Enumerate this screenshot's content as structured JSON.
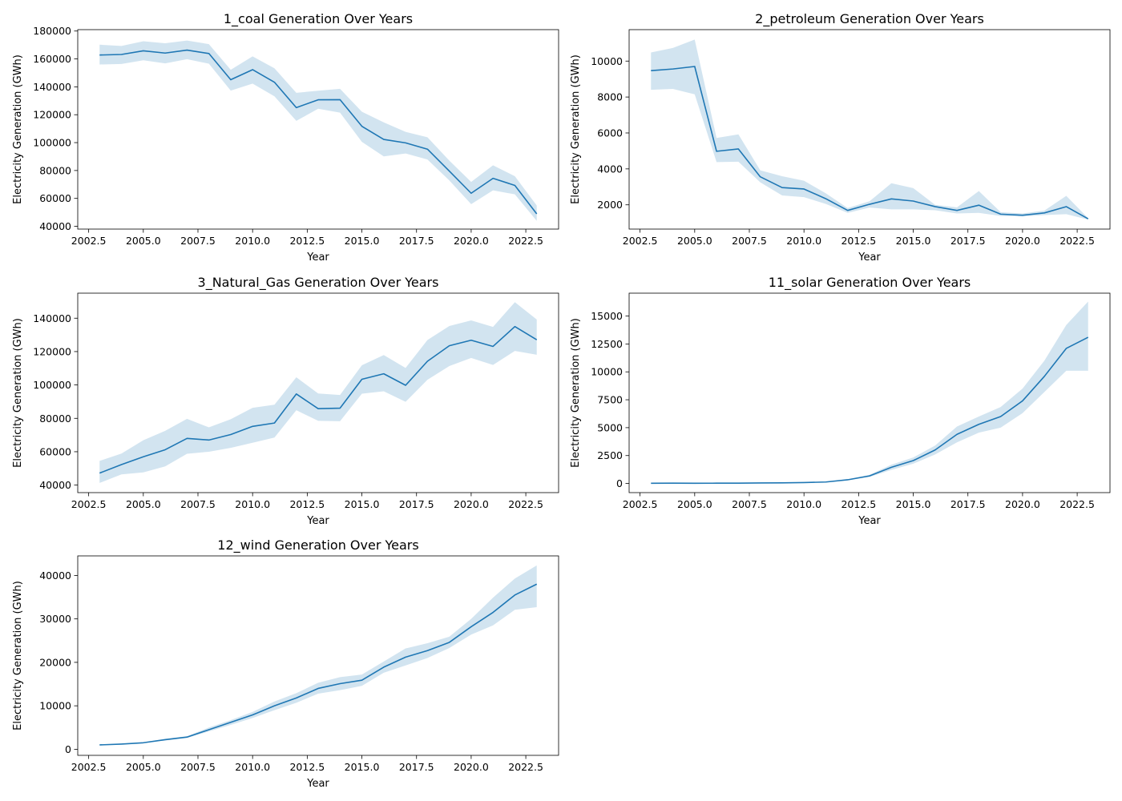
{
  "charts": [
    {
      "type": "line",
      "title": "1_coal Generation Over Years",
      "xlabel": "Year",
      "ylabel": "Electricity Generation (GWh)",
      "xlim": [
        2002.0,
        2024.0
      ],
      "ylim": [
        38000,
        181000
      ],
      "xticks": [
        2002.5,
        2005.0,
        2007.5,
        2010.0,
        2012.5,
        2015.0,
        2017.5,
        2020.0,
        2022.5
      ],
      "xtick_labels": [
        "2002.5",
        "2005.0",
        "2007.5",
        "2010.0",
        "2012.5",
        "2015.0",
        "2017.5",
        "2020.0",
        "2022.5"
      ],
      "yticks": [
        40000,
        60000,
        80000,
        100000,
        120000,
        140000,
        160000,
        180000
      ],
      "ytick_labels": [
        "40000",
        "60000",
        "80000",
        "100000",
        "120000",
        "140000",
        "160000",
        "180000"
      ],
      "x": [
        2003,
        2004,
        2005,
        2006,
        2007,
        2008,
        2009,
        2010,
        2011,
        2012,
        2013,
        2014,
        2015,
        2016,
        2017,
        2018,
        2019,
        2020,
        2021,
        2022,
        2023
      ],
      "mean": [
        162800,
        163200,
        165800,
        164200,
        166300,
        163900,
        145100,
        152300,
        143300,
        125100,
        130700,
        130800,
        111700,
        102300,
        99800,
        95300,
        79600,
        63700,
        74400,
        69300,
        48900
      ],
      "lower": [
        156000,
        156400,
        159000,
        156800,
        159800,
        156600,
        137300,
        142300,
        133200,
        115600,
        124300,
        121500,
        100500,
        90100,
        92200,
        87900,
        72900,
        55900,
        65800,
        62900,
        43900
      ],
      "upper": [
        170200,
        169300,
        172700,
        171200,
        173200,
        170600,
        152200,
        161800,
        153300,
        135700,
        137200,
        138600,
        122100,
        114500,
        107700,
        103800,
        87100,
        71800,
        83700,
        75900,
        54900
      ]
    },
    {
      "type": "line",
      "title": "2_petroleum Generation Over Years",
      "xlabel": "Year",
      "ylabel": "Electricity Generation (GWh)",
      "xlim": [
        2002.0,
        2024.0
      ],
      "ylim": [
        650,
        11750
      ],
      "xticks": [
        2002.5,
        2005.0,
        2007.5,
        2010.0,
        2012.5,
        2015.0,
        2017.5,
        2020.0,
        2022.5
      ],
      "xtick_labels": [
        "2002.5",
        "2005.0",
        "2007.5",
        "2010.0",
        "2012.5",
        "2015.0",
        "2017.5",
        "2020.0",
        "2022.5"
      ],
      "yticks": [
        2000,
        4000,
        6000,
        8000,
        10000
      ],
      "ytick_labels": [
        "2000",
        "4000",
        "6000",
        "8000",
        "10000"
      ],
      "x": [
        2003,
        2004,
        2005,
        2006,
        2007,
        2008,
        2009,
        2010,
        2011,
        2012,
        2013,
        2014,
        2015,
        2016,
        2017,
        2018,
        2019,
        2020,
        2021,
        2022,
        2023
      ],
      "mean": [
        9470,
        9560,
        9700,
        4980,
        5110,
        3560,
        2960,
        2880,
        2340,
        1690,
        2030,
        2330,
        2210,
        1900,
        1690,
        1980,
        1480,
        1420,
        1550,
        1900,
        1220
      ],
      "lower": [
        8400,
        8450,
        8150,
        4380,
        4400,
        3250,
        2520,
        2430,
        2050,
        1550,
        1850,
        1750,
        1750,
        1700,
        1520,
        1550,
        1380,
        1350,
        1430,
        1480,
        1180
      ],
      "upper": [
        10480,
        10730,
        11200,
        5720,
        5920,
        3920,
        3590,
        3340,
        2640,
        1820,
        2200,
        3200,
        2930,
        2000,
        1860,
        2770,
        1590,
        1520,
        1680,
        2500,
        1260
      ]
    },
    {
      "type": "line",
      "title": "3_Natural_Gas Generation Over Years",
      "xlabel": "Year",
      "ylabel": "Electricity Generation (GWh)",
      "xlim": [
        2002.0,
        2024.0
      ],
      "ylim": [
        35500,
        155000
      ],
      "xticks": [
        2002.5,
        2005.0,
        2007.5,
        2010.0,
        2012.5,
        2015.0,
        2017.5,
        2020.0,
        2022.5
      ],
      "xtick_labels": [
        "2002.5",
        "2005.0",
        "2007.5",
        "2010.0",
        "2012.5",
        "2015.0",
        "2017.5",
        "2020.0",
        "2022.5"
      ],
      "yticks": [
        40000,
        60000,
        80000,
        100000,
        120000,
        140000
      ],
      "ytick_labels": [
        "40000",
        "60000",
        "80000",
        "100000",
        "120000",
        "140000"
      ],
      "x": [
        2003,
        2004,
        2005,
        2006,
        2007,
        2008,
        2009,
        2010,
        2011,
        2012,
        2013,
        2014,
        2015,
        2016,
        2017,
        2018,
        2019,
        2020,
        2021,
        2022,
        2023
      ],
      "mean": [
        47200,
        52300,
        57000,
        61200,
        68000,
        67000,
        70300,
        75200,
        77200,
        94600,
        85800,
        86100,
        103400,
        106700,
        99800,
        114200,
        123500,
        126800,
        123100,
        135000,
        127100
      ],
      "lower": [
        41300,
        46400,
        47600,
        51200,
        58800,
        60000,
        62300,
        65400,
        68500,
        84900,
        78500,
        78300,
        94800,
        96200,
        89900,
        103100,
        111300,
        116200,
        112000,
        120400,
        118100
      ],
      "upper": [
        54500,
        58900,
        66900,
        72500,
        79700,
        74600,
        79500,
        86300,
        88200,
        104600,
        94900,
        94000,
        111800,
        117900,
        110200,
        126900,
        135300,
        138700,
        134800,
        149600,
        139200
      ]
    },
    {
      "type": "line",
      "title": "11_solar Generation Over Years",
      "xlabel": "Year",
      "ylabel": "Electricity Generation (GWh)",
      "xlim": [
        2002.0,
        2024.0
      ],
      "ylim": [
        -820,
        17050
      ],
      "xticks": [
        2002.5,
        2005.0,
        2007.5,
        2010.0,
        2012.5,
        2015.0,
        2017.5,
        2020.0,
        2022.5
      ],
      "xtick_labels": [
        "2002.5",
        "2005.0",
        "2007.5",
        "2010.0",
        "2012.5",
        "2015.0",
        "2017.5",
        "2020.0",
        "2022.5"
      ],
      "yticks": [
        0,
        2500,
        5000,
        7500,
        10000,
        12500,
        15000
      ],
      "ytick_labels": [
        "0",
        "2500",
        "5000",
        "7500",
        "10000",
        "12500",
        "15000"
      ],
      "x": [
        2003,
        2004,
        2005,
        2006,
        2007,
        2008,
        2009,
        2010,
        2011,
        2012,
        2013,
        2014,
        2015,
        2016,
        2017,
        2018,
        2019,
        2020,
        2021,
        2022,
        2023
      ],
      "mean": [
        20,
        25,
        20,
        25,
        30,
        45,
        55,
        80,
        130,
        330,
        680,
        1450,
        2050,
        3000,
        4400,
        5300,
        6000,
        7400,
        9600,
        12100,
        13100
      ],
      "lower": [
        10,
        15,
        10,
        15,
        20,
        30,
        40,
        60,
        100,
        280,
        580,
        1220,
        1770,
        2600,
        3680,
        4550,
        5000,
        6300,
        8200,
        10100,
        10100
      ],
      "upper": [
        30,
        35,
        30,
        35,
        40,
        60,
        70,
        100,
        160,
        380,
        780,
        1680,
        2330,
        3400,
        5100,
        6000,
        6850,
        8500,
        11000,
        14200,
        16300
      ]
    },
    {
      "type": "line",
      "title": "12_wind Generation Over Years",
      "xlabel": "Year",
      "ylabel": "Electricity Generation (GWh)",
      "xlim": [
        2002.0,
        2024.0
      ],
      "ylim": [
        -1400,
        44500
      ],
      "xticks": [
        2002.5,
        2005.0,
        2007.5,
        2010.0,
        2012.5,
        2015.0,
        2017.5,
        2020.0,
        2022.5
      ],
      "xtick_labels": [
        "2002.5",
        "2005.0",
        "2007.5",
        "2010.0",
        "2012.5",
        "2015.0",
        "2017.5",
        "2020.0",
        "2022.5"
      ],
      "yticks": [
        0,
        10000,
        20000,
        30000,
        40000
      ],
      "ytick_labels": [
        "0",
        "10000",
        "20000",
        "30000",
        "40000"
      ],
      "x": [
        2003,
        2004,
        2005,
        2006,
        2007,
        2008,
        2009,
        2010,
        2011,
        2012,
        2013,
        2014,
        2015,
        2016,
        2017,
        2018,
        2019,
        2020,
        2021,
        2022,
        2023
      ],
      "mean": [
        1000,
        1200,
        1500,
        2200,
        2800,
        4500,
        6200,
        7900,
        10000,
        11800,
        14000,
        15100,
        15900,
        18900,
        21200,
        22700,
        24600,
        28200,
        31500,
        35500,
        38000
      ],
      "lower": [
        900,
        1100,
        1400,
        2000,
        2600,
        4100,
        5600,
        7200,
        9000,
        10700,
        12800,
        13600,
        14600,
        17600,
        19300,
        21000,
        23300,
        26400,
        28500,
        32100,
        32700
      ],
      "upper": [
        1100,
        1300,
        1600,
        2400,
        3000,
        5000,
        6700,
        8600,
        11000,
        12900,
        15300,
        16600,
        17200,
        20200,
        23200,
        24400,
        25900,
        30000,
        34900,
        39300,
        42300
      ]
    }
  ]
}
